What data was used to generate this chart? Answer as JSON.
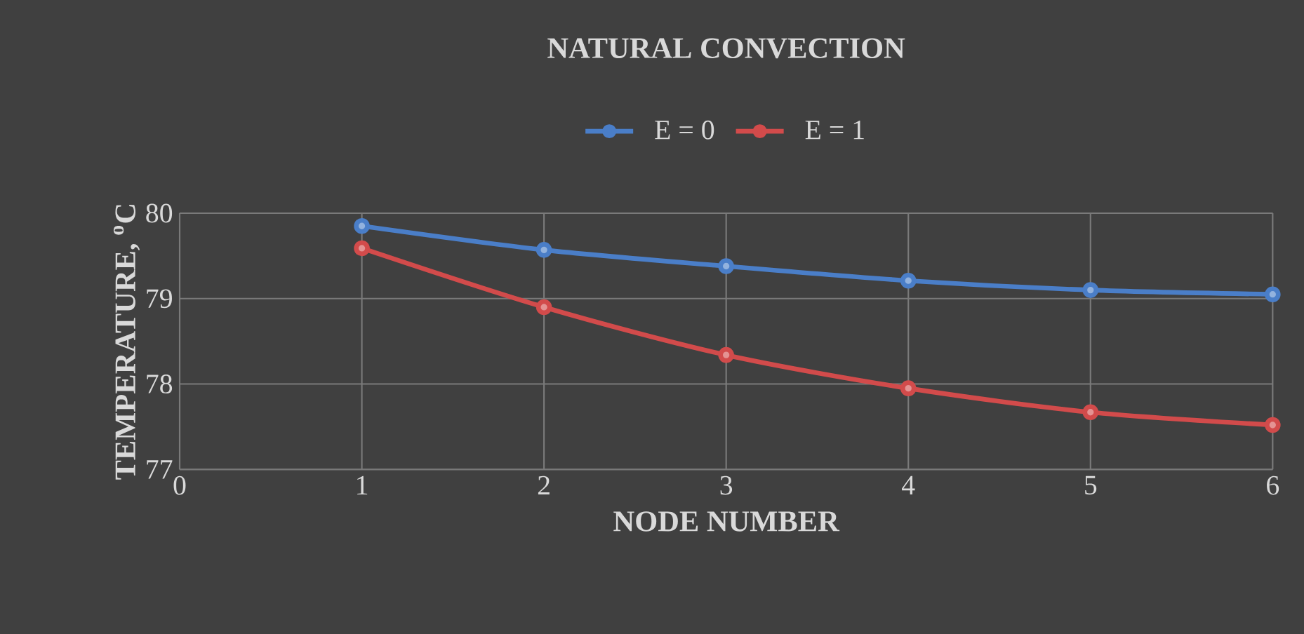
{
  "chart_data": {
    "type": "line",
    "title": "NATURAL CONVECTION",
    "xlabel": "NODE NUMBER",
    "ylabel": "TEMPERATURE, $^{o}$C",
    "series": [
      {
        "name": "E = 0",
        "color": "#4a7ec8",
        "x": [
          1,
          2,
          3,
          4,
          5,
          6
        ],
        "values": [
          79.85,
          79.57,
          79.38,
          79.21,
          79.1,
          79.05
        ]
      },
      {
        "name": "E = 1",
        "color": "#d24b4b",
        "x": [
          1,
          2,
          3,
          4,
          5,
          6
        ],
        "values": [
          79.59,
          78.9,
          78.34,
          77.95,
          77.67,
          77.52
        ]
      }
    ],
    "xlim": [
      0,
      6
    ],
    "xticks": [
      0,
      1,
      2,
      3,
      4,
      5,
      6
    ],
    "ylim": [
      77,
      80
    ],
    "yticks": [
      77,
      78,
      79,
      80
    ],
    "grid": true,
    "legend": "top",
    "marker": "circle",
    "line_style": "solid"
  }
}
